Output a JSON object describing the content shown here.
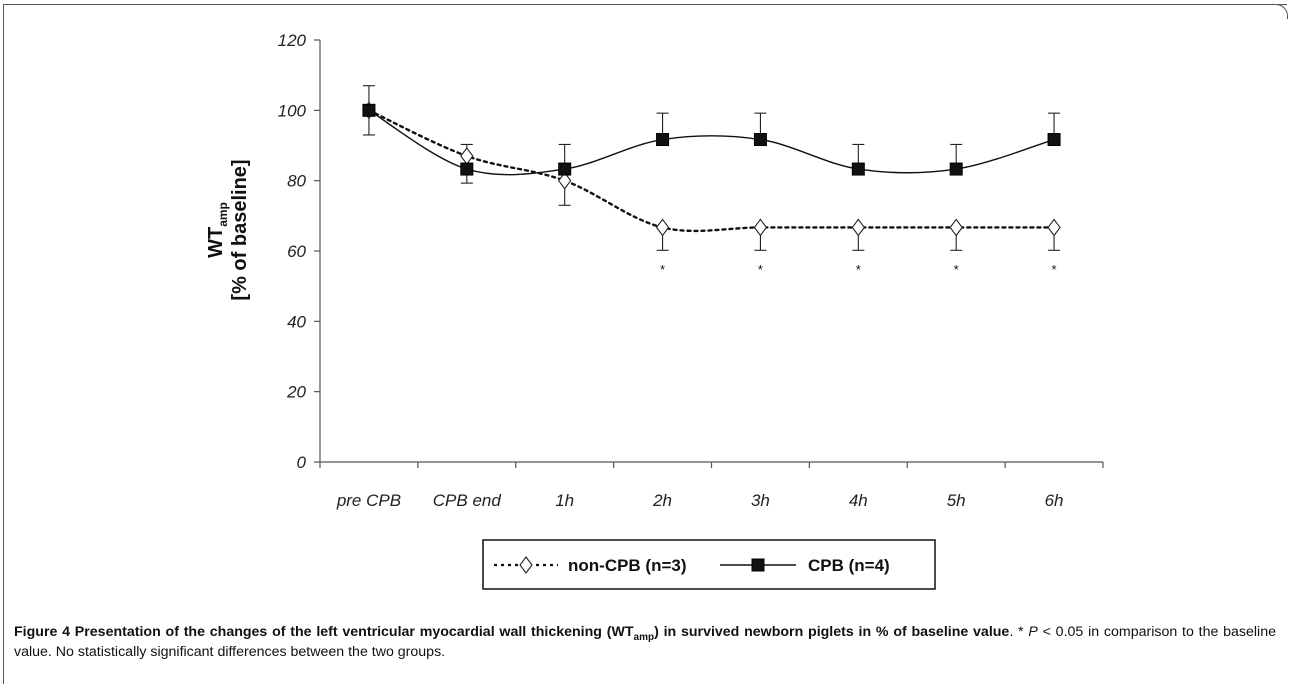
{
  "chart_data": {
    "type": "line",
    "categories": [
      "pre CPB",
      "CPB end",
      "1h",
      "2h",
      "3h",
      "4h",
      "5h",
      "6h"
    ],
    "ylabel_main": "WT",
    "ylabel_sub": "amp",
    "ylabel_line2": "[% of baseline]",
    "ylim": [
      0,
      120
    ],
    "yticks": [
      0,
      20,
      40,
      60,
      80,
      100,
      120
    ],
    "grid": false,
    "legend_position": "bottom",
    "series": [
      {
        "name": "non-CPB (n=3)",
        "style": "dotted",
        "marker": "open-diamond",
        "values": [
          100,
          87,
          80,
          66.7,
          66.7,
          66.7,
          66.7,
          66.7
        ],
        "error_low": [
          null,
          null,
          7,
          6.5,
          6.5,
          6.5,
          6.5,
          6.5
        ],
        "error_high": [
          null,
          null,
          null,
          null,
          null,
          null,
          null,
          null
        ]
      },
      {
        "name": "CPB (n=4)",
        "style": "solid",
        "marker": "filled-square",
        "values": [
          100,
          83.3,
          83.3,
          91.7,
          91.7,
          83.3,
          83.3,
          91.7
        ],
        "error_low": [
          7,
          4,
          null,
          null,
          null,
          null,
          null,
          null
        ],
        "error_high": [
          7,
          7,
          7,
          7.5,
          7.5,
          7,
          7,
          7.5
        ]
      }
    ],
    "annotations": [
      {
        "category": "2h",
        "text": "*"
      },
      {
        "category": "3h",
        "text": "*"
      },
      {
        "category": "4h",
        "text": "*"
      },
      {
        "category": "5h",
        "text": "*"
      },
      {
        "category": "6h",
        "text": "*"
      }
    ],
    "colors": {
      "line": "#111111",
      "marker_fill": "#111111"
    }
  },
  "caption": {
    "bold_prefix": "Figure 4 Presentation of the changes of the left ventricular myocardial wall thickening (WT",
    "bold_sub": "amp",
    "bold_suffix": ") in survived newborn piglets in % of baseline value",
    "rest_part1": ". * ",
    "rest_italic": "P",
    "rest_part2": " < 0.05 in comparison to the baseline value. No statistically significant differences between the two groups."
  }
}
